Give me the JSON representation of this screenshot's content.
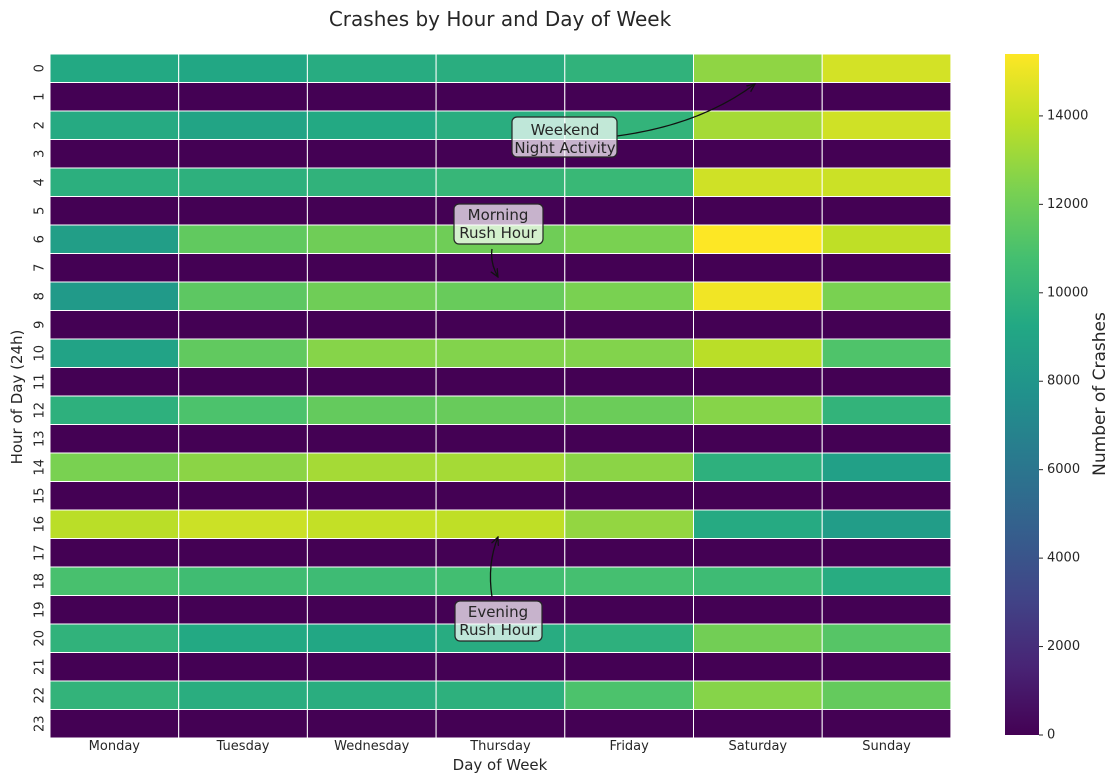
{
  "chart_data": {
    "type": "heatmap",
    "title": "Crashes by Hour and Day of Week",
    "xlabel": "Day of Week",
    "ylabel": "Hour of Day (24h)",
    "x_categories": [
      "Monday",
      "Tuesday",
      "Wednesday",
      "Thursday",
      "Friday",
      "Saturday",
      "Sunday"
    ],
    "y_categories": [
      "0",
      "1",
      "2",
      "3",
      "4",
      "5",
      "6",
      "7",
      "8",
      "9",
      "10",
      "11",
      "12",
      "13",
      "14",
      "15",
      "16",
      "17",
      "18",
      "19",
      "20",
      "21",
      "22",
      "23"
    ],
    "values": [
      [
        9300,
        9200,
        9500,
        9600,
        9900,
        12800,
        14400
      ],
      [
        0,
        0,
        0,
        0,
        0,
        0,
        0
      ],
      [
        9400,
        9000,
        9300,
        9600,
        10000,
        13300,
        14300
      ],
      [
        0,
        0,
        0,
        0,
        0,
        0,
        0
      ],
      [
        9700,
        9800,
        9900,
        10200,
        10300,
        14300,
        14200
      ],
      [
        0,
        0,
        0,
        0,
        0,
        0,
        0
      ],
      [
        8600,
        11600,
        12000,
        12000,
        12300,
        15400,
        13900
      ],
      [
        0,
        0,
        0,
        0,
        0,
        0,
        0
      ],
      [
        8300,
        11500,
        12000,
        11800,
        12300,
        15100,
        12300
      ],
      [
        0,
        0,
        0,
        0,
        0,
        0,
        0
      ],
      [
        8900,
        11600,
        12600,
        12500,
        12500,
        13800,
        11100
      ],
      [
        0,
        0,
        0,
        0,
        0,
        0,
        0
      ],
      [
        9800,
        11000,
        11700,
        11800,
        11900,
        12600,
        10000
      ],
      [
        0,
        0,
        0,
        0,
        0,
        0,
        0
      ],
      [
        12300,
        12700,
        13300,
        13300,
        12700,
        9800,
        8700
      ],
      [
        0,
        0,
        0,
        0,
        0,
        0,
        0
      ],
      [
        13800,
        14200,
        14000,
        13900,
        12900,
        9400,
        8500
      ],
      [
        0,
        0,
        0,
        0,
        0,
        0,
        0
      ],
      [
        10900,
        10600,
        10500,
        10700,
        10800,
        10500,
        9500
      ],
      [
        0,
        0,
        0,
        0,
        0,
        0,
        0
      ],
      [
        9900,
        9300,
        9200,
        9500,
        9800,
        12100,
        11300
      ],
      [
        0,
        0,
        0,
        0,
        0,
        0,
        0
      ],
      [
        10000,
        9600,
        9600,
        9800,
        11000,
        12600,
        11700
      ],
      [
        0,
        0,
        0,
        0,
        0,
        0,
        0
      ]
    ],
    "colorbar": {
      "label": "Number of Crashes",
      "min": 0,
      "max": 15400,
      "ticks": [
        0,
        2000,
        4000,
        6000,
        8000,
        10000,
        12000,
        14000
      ],
      "colormap": "viridis"
    },
    "annotations": [
      {
        "text_lines": [
          "Weekend",
          "Night Activity"
        ],
        "target_day": "Saturday",
        "target_hour": 0
      },
      {
        "text_lines": [
          "Morning",
          "Rush Hour"
        ],
        "target_day": "Thursday",
        "target_hour": 8
      },
      {
        "text_lines": [
          "Evening",
          "Rush Hour"
        ],
        "target_day": "Thursday",
        "target_hour": 17
      }
    ]
  }
}
